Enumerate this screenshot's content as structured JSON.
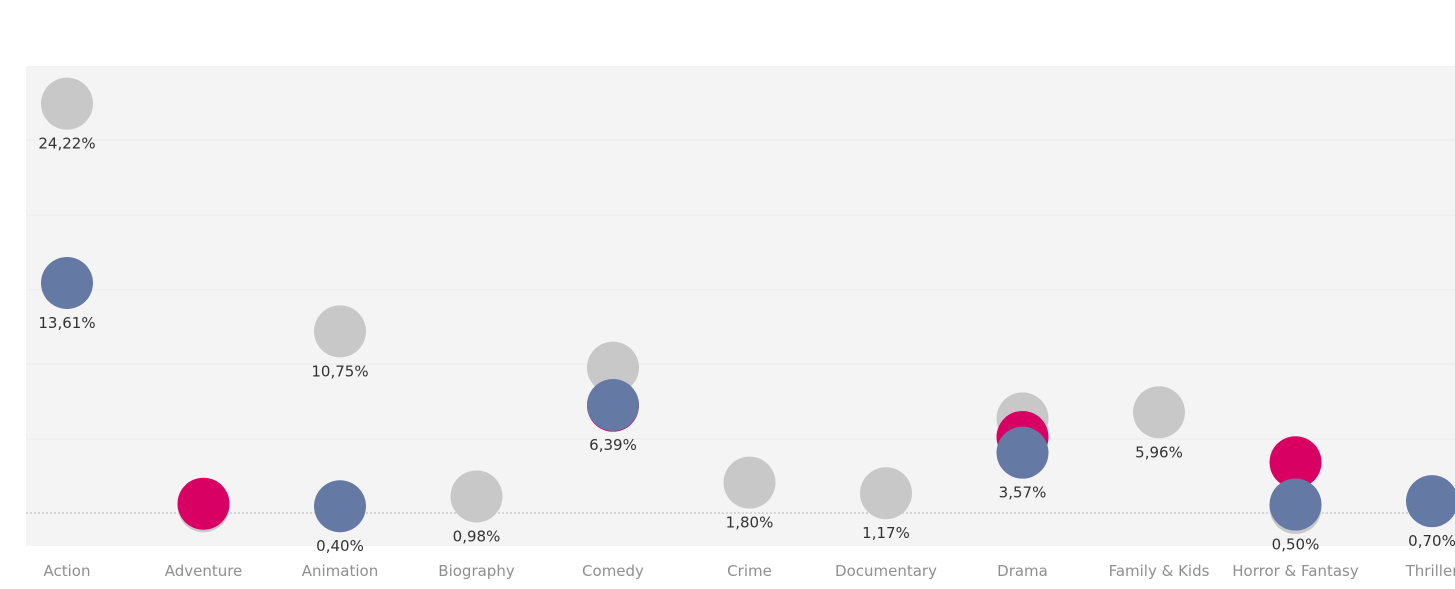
{
  "chart_data": {
    "type": "scatter",
    "title": "",
    "xlabel": "",
    "ylabel": "",
    "ylim": [
      0,
      30
    ],
    "grid": true,
    "legend": "none",
    "categories": [
      "Action",
      "Adventure",
      "Animation",
      "Biography",
      "Comedy",
      "Crime",
      "Documentary",
      "Drama",
      "Family & Kids",
      "Horror & Fantasy",
      "Thriller"
    ],
    "series": [
      {
        "color": "#c8c8c8",
        "values": [
          24.22,
          0.4,
          10.75,
          0.98,
          8.6,
          1.8,
          1.17,
          5.6,
          5.96,
          0.3,
          null
        ]
      },
      {
        "color": "#d80063",
        "values": [
          null,
          0.55,
          null,
          null,
          6.35,
          null,
          null,
          4.5,
          null,
          3.0,
          null
        ]
      },
      {
        "color": "#6579a5",
        "values": [
          13.61,
          null,
          0.4,
          null,
          6.39,
          null,
          null,
          3.57,
          null,
          0.5,
          0.7
        ]
      }
    ],
    "labels": [
      {
        "category": "Action",
        "value": 24.22,
        "text": "24,22%"
      },
      {
        "category": "Action",
        "value": 13.61,
        "text": "13,61%"
      },
      {
        "category": "Animation",
        "value": 10.75,
        "text": "10,75%"
      },
      {
        "category": "Animation",
        "value": 0.4,
        "text": "0,40%"
      },
      {
        "category": "Biography",
        "value": 0.98,
        "text": "0,98%"
      },
      {
        "category": "Comedy",
        "value": 6.39,
        "text": "6,39%"
      },
      {
        "category": "Crime",
        "value": 1.8,
        "text": "1,80%"
      },
      {
        "category": "Documentary",
        "value": 1.17,
        "text": "1,17%"
      },
      {
        "category": "Drama",
        "value": 3.57,
        "text": "3,57%"
      },
      {
        "category": "Family & Kids",
        "value": 5.96,
        "text": "5,96%"
      },
      {
        "category": "Horror & Fantasy",
        "value": 0.5,
        "text": "0,50%"
      },
      {
        "category": "Thriller",
        "value": 0.7,
        "text": "0,70%"
      }
    ],
    "colors": {
      "panel": "#f5f4f4",
      "grid": "#ececec",
      "zero_line": "#b8b8b8"
    }
  }
}
